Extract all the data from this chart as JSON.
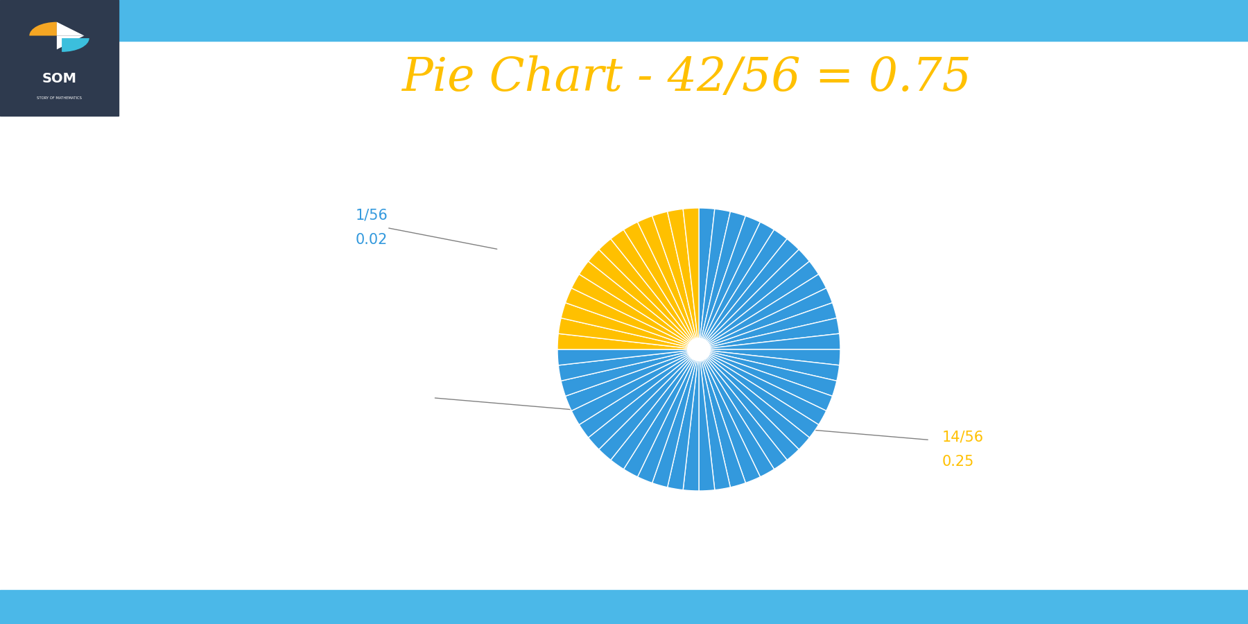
{
  "title": "Pie Chart - 42/56 = 0.75",
  "title_color": "#FFC000",
  "title_fontsize": 48,
  "background_color": "#FFFFFF",
  "blue_color": "#3399DD",
  "gold_color": "#FFC000",
  "n_total": 56,
  "n_blue": 42,
  "n_gold": 14,
  "label_blue_line1": "1/56",
  "label_blue_line2": "0.02",
  "label_blue_color": "#3399DD",
  "label_gold_line1": "14/56",
  "label_gold_line2": "0.25",
  "label_gold_color": "#FFC000",
  "stripe_color": "#4BB8E8",
  "dark_bg": "#2E3A4E",
  "logo_text_som": "SOM",
  "logo_subtext": "STORY OF MATHEMATICS"
}
